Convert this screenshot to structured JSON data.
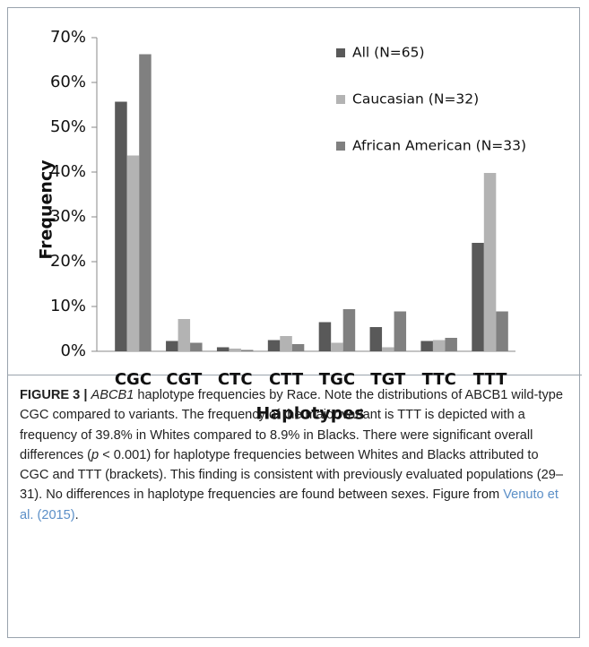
{
  "chart_data": {
    "type": "bar",
    "xlabel": "Haplotypes",
    "ylabel": "Frequency",
    "categories": [
      "CGC",
      "CGT",
      "CTC",
      "CTT",
      "TGC",
      "TGT",
      "TTC",
      "TTT"
    ],
    "series": [
      {
        "name": "All (N=65)",
        "color": "#595959",
        "values": [
          55.7,
          2.3,
          0.9,
          2.5,
          6.5,
          5.4,
          2.3,
          24.2
        ]
      },
      {
        "name": "Caucasian (N=32)",
        "color": "#b3b3b3",
        "values": [
          43.7,
          7.2,
          0.6,
          3.4,
          1.9,
          0.9,
          2.5,
          39.8
        ]
      },
      {
        "name": "African American (N=33)",
        "color": "#808080",
        "values": [
          66.3,
          1.9,
          0.3,
          1.6,
          9.4,
          8.9,
          3.0,
          8.9
        ]
      }
    ],
    "ylim": [
      0,
      70
    ],
    "yticks": [
      {
        "value": 0,
        "label": "0%"
      },
      {
        "value": 10,
        "label": "10%"
      },
      {
        "value": 20,
        "label": "20%"
      },
      {
        "value": 30,
        "label": "30%"
      },
      {
        "value": 40,
        "label": "40%"
      },
      {
        "value": 50,
        "label": "50%"
      },
      {
        "value": 60,
        "label": "60%"
      },
      {
        "value": 70,
        "label": "70%"
      }
    ],
    "grid": false,
    "legend": "upper right"
  },
  "caption": {
    "segments": [
      "FIGURE 3 |",
      "ABCB1",
      " haplotype frequencies by Race. Note the distributions of ABCB1 wild-type CGC compared to variants. The frequency of the major variant is TTT is depicted with a frequency of 39.8% in Whites compared to 8.9% in Blacks. There were significant overall differences (",
      "p",
      " < 0.001) for haplotype frequencies between Whites and Blacks attributed to CGC and TTT (brackets). This finding is consistent with previously evaluated populations (29–31). No differences in haplotype frequencies are found between sexes. Figure from ",
      "Venuto et al. (2015)",
      "."
    ]
  }
}
